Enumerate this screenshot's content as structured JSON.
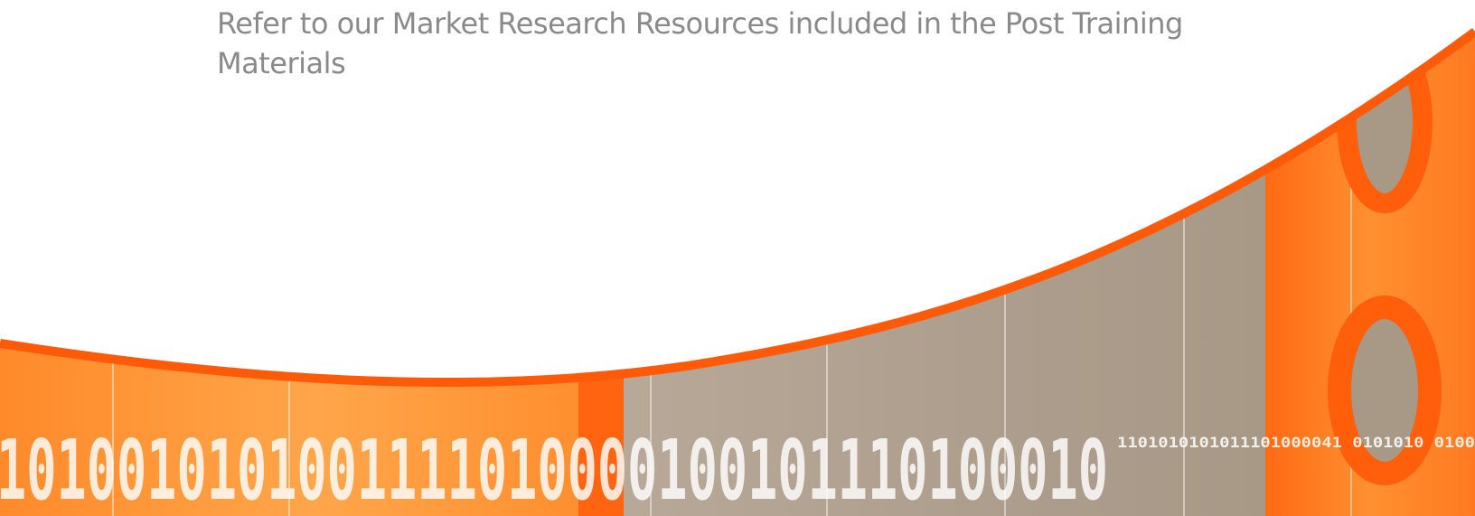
{
  "slide": {
    "body_text": "Refer to our Market Research Resources included in the Post Training Materials"
  },
  "decoration": {
    "binary_large": "1010010101001111010000100101110100010",
    "binary_small": "1101010101011101000041  0101010  0100",
    "colors": {
      "orange": "#ff6a13",
      "orange_light": "#ff9a3c",
      "taupe": "#b3a393",
      "white": "#ffffff"
    }
  }
}
